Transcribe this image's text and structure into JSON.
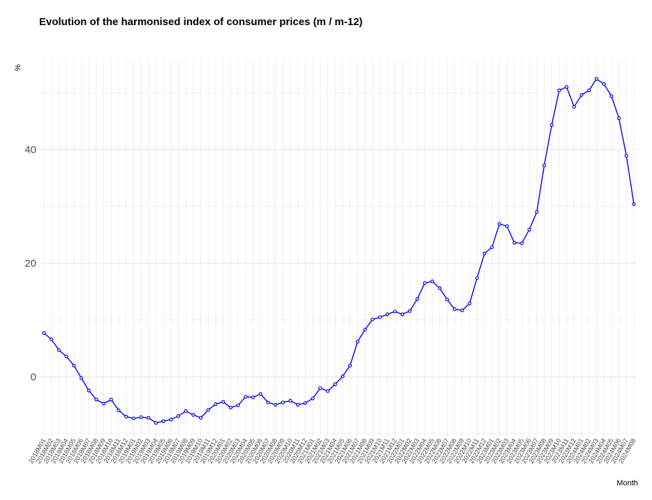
{
  "chart_data": {
    "type": "line",
    "title": "Evolution of the harmonised index of consumer prices (m / m-12)",
    "xlabel": "Month",
    "ylabel": "%",
    "ylim": [
      -10.5,
      55.5
    ],
    "yticks": [
      0,
      20,
      40
    ],
    "grid": true,
    "line_color": "#0000e0",
    "categories": [
      "2018M01",
      "2018M02",
      "2018M03",
      "2018M04",
      "2018M05",
      "2018M06",
      "2018M07",
      "2018M08",
      "2018M09",
      "2018M10",
      "2018M11",
      "2018M12",
      "2019M01",
      "2019M02",
      "2019M03",
      "2019M04",
      "2019M05",
      "2019M06",
      "2019M07",
      "2019M08",
      "2019M09",
      "2019M10",
      "2019M11",
      "2019M12",
      "2020M01",
      "2020M02",
      "2020M03",
      "2020M04",
      "2020M05",
      "2020M06",
      "2020M07",
      "2020M08",
      "2020M09",
      "2020M10",
      "2020M11",
      "2020M12",
      "2021M01",
      "2021M02",
      "2021M03",
      "2021M04",
      "2021M05",
      "2021M06",
      "2021M07",
      "2021M08",
      "2021M09",
      "2021M10",
      "2021M11",
      "2021M12",
      "2022M01",
      "2022M02",
      "2022M03",
      "2022M04",
      "2022M05",
      "2022M06",
      "2022M07",
      "2022M08",
      "2022M09",
      "2022M10",
      "2022M11",
      "2022M12",
      "2023M01",
      "2023M02",
      "2023M03",
      "2023M04",
      "2023M05",
      "2023M06",
      "2023M07",
      "2023M08",
      "2023M09",
      "2023M10",
      "2023M11",
      "2023M12",
      "2024M01",
      "2024M02",
      "2024M03",
      "2024M04",
      "2024M05",
      "2024M06",
      "2024M07",
      "2024M08"
    ],
    "series": [
      {
        "values": [
          7.7,
          6.6,
          4.7,
          3.6,
          2.0,
          -0.2,
          -2.4,
          -4.0,
          -4.7,
          -4.0,
          -5.9,
          -7.0,
          -7.3,
          -7.1,
          -7.2,
          -8.1,
          -7.8,
          -7.5,
          -6.9,
          -6.0,
          -6.7,
          -7.2,
          -5.8,
          -4.8,
          -4.4,
          -5.4,
          -5.0,
          -3.5,
          -3.6,
          -3.0,
          -4.5,
          -4.9,
          -4.5,
          -4.2,
          -4.9,
          -4.6,
          -3.8,
          -2.0,
          -2.5,
          -1.3,
          0.1,
          2.0,
          6.2,
          8.3,
          10.1,
          10.5,
          11.0,
          11.5,
          11.0,
          11.6,
          13.7,
          16.5,
          16.8,
          15.6,
          13.6,
          11.9,
          11.7,
          12.9,
          17.4,
          21.7,
          22.8,
          26.9,
          26.5,
          23.6,
          23.5,
          25.9,
          29.0,
          37.2,
          44.3,
          50.4,
          51.0,
          47.5,
          49.6,
          50.4,
          52.4,
          51.5,
          49.4,
          45.5,
          38.9,
          30.4
        ]
      }
    ]
  }
}
